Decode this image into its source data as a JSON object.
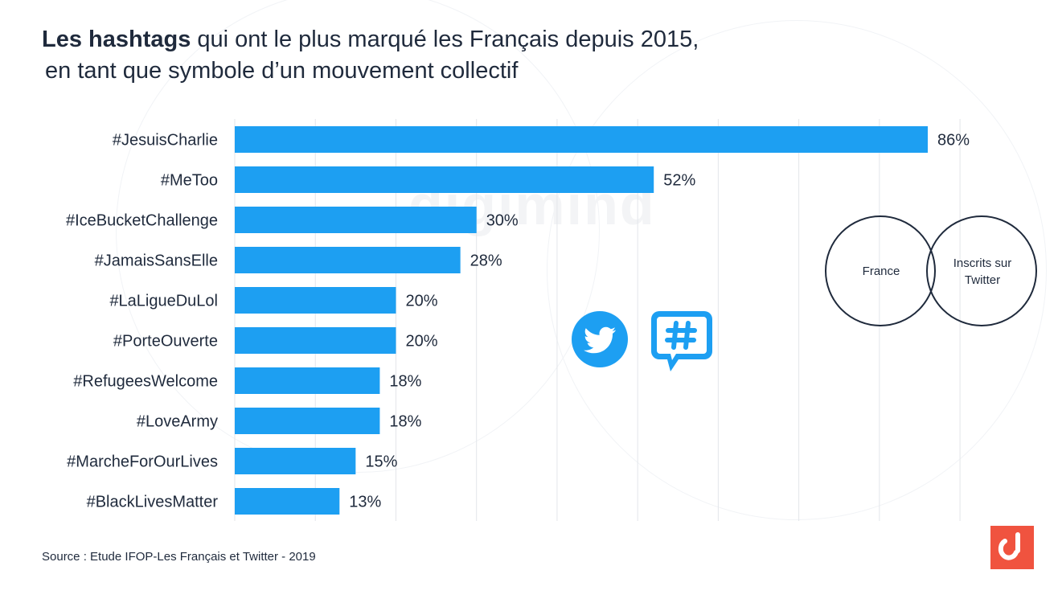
{
  "header": {
    "title_bold": "Les hashtags",
    "title_rest": "qui ont le plus marqué les Français depuis 2015,",
    "title_line2": "en tant que symbole d’un mouvement collectif"
  },
  "watermark": {
    "text": "digimind"
  },
  "chart_data": {
    "type": "bar",
    "orientation": "horizontal",
    "categories": [
      "#JesuisCharlie",
      "#MeToo",
      "#IceBucketChallenge",
      "#JamaisSansElle",
      "#LaLigueDuLol",
      "#PorteOuverte",
      "#RefugeesWelcome",
      "#LoveArmy",
      "#MarcheForOurLives",
      "#BlackLivesMatter"
    ],
    "values": [
      86,
      52,
      30,
      28,
      20,
      20,
      18,
      18,
      15,
      13
    ],
    "value_labels": [
      "86%",
      "52%",
      "30%",
      "28%",
      "20%",
      "20%",
      "18%",
      "18%",
      "15%",
      "13%"
    ],
    "xlim": [
      0,
      90
    ],
    "grid": true,
    "bar_color": "#1d9ff2",
    "grid_color": "#e3e6ea",
    "title": "",
    "xlabel": "",
    "ylabel": ""
  },
  "icons": {
    "twitter": "twitter-bird-icon",
    "hashtag": "hashtag-speech-bubble-icon",
    "accent_color": "#1d9ff2"
  },
  "venn": {
    "left_label": "France",
    "right_label_line1": "Inscrits sur",
    "right_label_line2": "Twitter"
  },
  "footer": {
    "source": "Source :   Etude IFOP-Les Français et Twitter - 2019"
  },
  "brand": {
    "logo_icon": "digimind-logo-icon",
    "color": "#f0533f"
  }
}
